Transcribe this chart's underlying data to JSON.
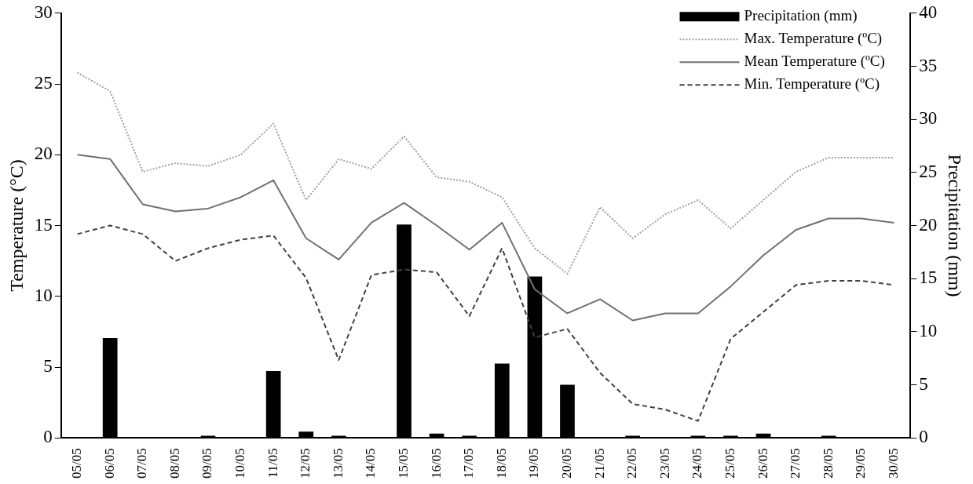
{
  "chart_data": {
    "type": "line",
    "categories": [
      "05/05",
      "06/05",
      "07/05",
      "08/05",
      "09/05",
      "10/05",
      "11/05",
      "12/05",
      "13/05",
      "14/05",
      "15/05",
      "16/05",
      "17/05",
      "18/05",
      "19/05",
      "20/05",
      "21/05",
      "22/05",
      "23/05",
      "24/05",
      "25/05",
      "26/05",
      "27/05",
      "28/05",
      "29/05",
      "30/05"
    ],
    "ylabel": "Temperature (°C)",
    "y2label": "Precipitation (mm)",
    "ylim": [
      0,
      30
    ],
    "yticks": [
      0,
      5,
      10,
      15,
      20,
      25,
      30
    ],
    "y2lim": [
      0,
      40
    ],
    "y2ticks": [
      0,
      5,
      10,
      15,
      20,
      25,
      30,
      35,
      40
    ],
    "grid": false,
    "legend": "top right",
    "marker": "none",
    "series": [
      {
        "name": "Precipitation (mm)",
        "type": "bar",
        "axis": "y2",
        "color": "#000000",
        "values": [
          0,
          9.4,
          0,
          0,
          0.2,
          0,
          6.3,
          0.6,
          0.2,
          0,
          20.1,
          0.4,
          0.2,
          7.0,
          15.2,
          5.0,
          0,
          0.2,
          0,
          0.2,
          0.2,
          0.4,
          0,
          0.2,
          0,
          0
        ]
      },
      {
        "name": "Max. Temperature (ºC)",
        "line_style": "dotted",
        "color": "#a0a0a0",
        "values": [
          25.8,
          24.5,
          18.8,
          19.4,
          19.2,
          20.0,
          22.2,
          16.8,
          19.7,
          19.0,
          21.3,
          18.4,
          18.1,
          17.0,
          13.4,
          11.6,
          16.3,
          14.1,
          15.8,
          16.8,
          14.8,
          16.8,
          18.8,
          19.8,
          19.8,
          19.8
        ]
      },
      {
        "name": "Mean Temperature (ºC)",
        "line_style": "solid",
        "color": "#707070",
        "values": [
          20.0,
          19.7,
          16.5,
          16.0,
          16.2,
          17.0,
          18.2,
          14.1,
          12.6,
          15.2,
          16.6,
          15.0,
          13.3,
          15.2,
          10.5,
          8.8,
          9.8,
          8.3,
          8.8,
          8.8,
          10.7,
          12.9,
          14.7,
          15.5,
          15.5,
          15.2
        ]
      },
      {
        "name": "Min. Temperature (ºC)",
        "line_style": "dashed",
        "color": "#404040",
        "values": [
          14.4,
          15.0,
          14.4,
          12.5,
          13.4,
          14.0,
          14.3,
          11.3,
          5.5,
          11.5,
          11.9,
          11.7,
          8.6,
          13.4,
          7.1,
          7.7,
          4.6,
          2.4,
          2.0,
          1.2,
          7.0,
          8.9,
          10.8,
          11.1,
          11.1,
          10.8
        ]
      }
    ]
  }
}
